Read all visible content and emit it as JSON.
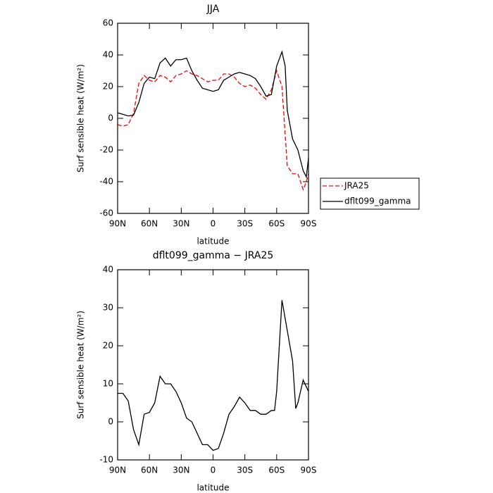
{
  "chart_data": [
    {
      "type": "line",
      "title": "JJA",
      "xlabel": "latitude",
      "ylabel": "Surf sensible heat (W/m²)",
      "x": [
        90,
        85,
        80,
        75,
        70,
        65,
        60,
        55,
        50,
        45,
        40,
        35,
        30,
        25,
        20,
        15,
        10,
        5,
        0,
        -5,
        -10,
        -15,
        -20,
        -25,
        -30,
        -35,
        -40,
        -45,
        -50,
        -55,
        -60,
        -65,
        -68,
        -70,
        -75,
        -80,
        -85,
        -88,
        -90
      ],
      "series": [
        {
          "name": "JRA25",
          "color": "#ff0000",
          "linestyle": "dashed",
          "values": [
            -4,
            -5,
            -4,
            3,
            22,
            27,
            24,
            23,
            27,
            26,
            23,
            27,
            28,
            30,
            28,
            27,
            25,
            23,
            24,
            24,
            28,
            28,
            26,
            22,
            20,
            21,
            19,
            15,
            12,
            18,
            30,
            20,
            -10,
            -30,
            -35,
            -35,
            -45,
            -40,
            -35
          ]
        },
        {
          "name": "dflt099_gamma",
          "color": "#000000",
          "linestyle": "solid",
          "values": [
            3.5,
            2.5,
            1.5,
            2,
            10,
            22,
            26,
            25,
            35,
            38,
            33,
            37,
            37,
            38,
            30,
            24,
            19,
            18,
            17,
            18,
            24,
            26,
            28,
            29,
            28,
            27,
            25,
            20,
            14,
            15,
            33,
            42,
            33,
            5,
            -13,
            -20,
            -33,
            -37,
            -25
          ]
        }
      ],
      "xlim": [
        90,
        -90
      ],
      "xticks": [
        {
          "value": 90,
          "label": "90N"
        },
        {
          "value": 60,
          "label": "60N"
        },
        {
          "value": 30,
          "label": "30N"
        },
        0,
        {
          "value": -30,
          "label": "30S"
        },
        {
          "value": -60,
          "label": "60S"
        },
        {
          "value": -90,
          "label": "90S"
        }
      ],
      "ylim": [
        -60,
        60
      ],
      "yticks": [
        -60,
        -40,
        -20,
        0,
        20,
        40,
        60
      ],
      "grid": false,
      "legend": "right"
    },
    {
      "type": "line",
      "title": "dflt099_gamma − JRA25",
      "xlabel": "latitude",
      "ylabel": "Surf sensible heat (W/m²)",
      "x": [
        90,
        85,
        80,
        75,
        70,
        65,
        60,
        55,
        50,
        45,
        40,
        35,
        30,
        25,
        20,
        15,
        10,
        5,
        0,
        -5,
        -10,
        -15,
        -20,
        -25,
        -30,
        -35,
        -40,
        -45,
        -50,
        -55,
        -58,
        -60,
        -65,
        -70,
        -75,
        -78,
        -80,
        -85,
        -90
      ],
      "series": [
        {
          "color": "#000000",
          "linestyle": "solid",
          "values": [
            7.5,
            7.5,
            5.5,
            -2,
            -6,
            2,
            2.5,
            5,
            12,
            10,
            10,
            8,
            5,
            1,
            0,
            -3,
            -6,
            -6,
            -7.5,
            -7,
            -3,
            2,
            4,
            6.5,
            5,
            3,
            3,
            2,
            2,
            3,
            3,
            8,
            32,
            24,
            16,
            3.5,
            5,
            11,
            8
          ]
        }
      ],
      "xlim": [
        90,
        -90
      ],
      "xticks": [
        {
          "value": 90,
          "label": "90N"
        },
        {
          "value": 60,
          "label": "60N"
        },
        {
          "value": 30,
          "label": "30N"
        },
        0,
        {
          "value": -30,
          "label": "30S"
        },
        {
          "value": -60,
          "label": "60S"
        },
        {
          "value": -90,
          "label": "90S"
        }
      ],
      "ylim": [
        -10,
        40
      ],
      "yticks": [
        -10,
        0,
        10,
        20,
        30,
        40
      ],
      "grid": false
    }
  ]
}
